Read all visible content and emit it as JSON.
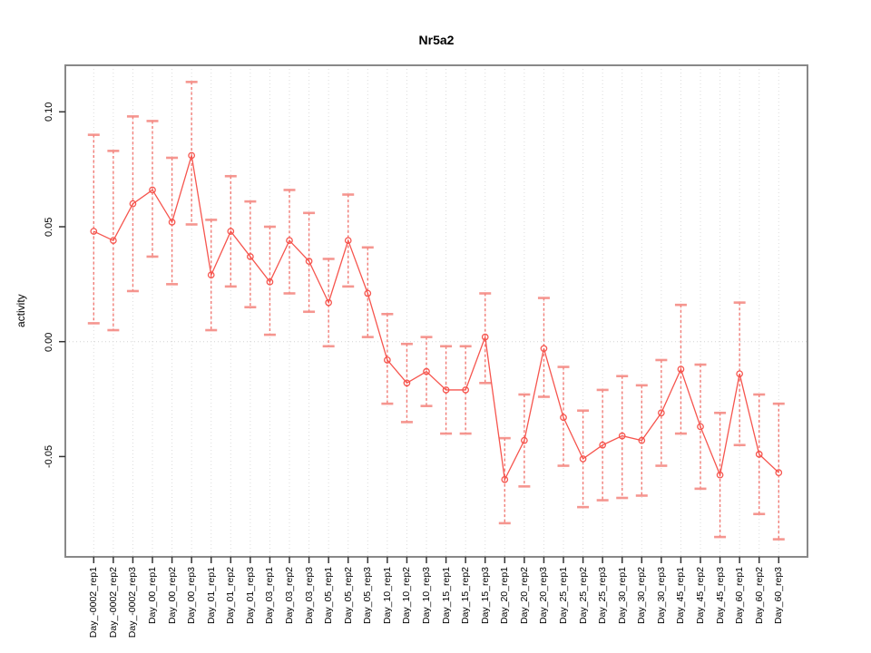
{
  "title": "Nr5a2",
  "ylabel": "activity",
  "chart_data": {
    "type": "line",
    "title": "Nr5a2",
    "xlabel": "",
    "ylabel": "activity",
    "categories": [
      "Day_-0002_rep1",
      "Day_-0002_rep2",
      "Day_-0002_rep3",
      "Day_00_rep1",
      "Day_00_rep2",
      "Day_00_rep3",
      "Day_01_rep1",
      "Day_01_rep2",
      "Day_01_rep3",
      "Day_03_rep1",
      "Day_03_rep2",
      "Day_03_rep3",
      "Day_05_rep1",
      "Day_05_rep2",
      "Day_05_rep3",
      "Day_10_rep1",
      "Day_10_rep2",
      "Day_10_rep3",
      "Day_15_rep1",
      "Day_15_rep2",
      "Day_15_rep3",
      "Day_20_rep1",
      "Day_20_rep2",
      "Day_20_rep3",
      "Day_25_rep1",
      "Day_25_rep2",
      "Day_25_rep3",
      "Day_30_rep1",
      "Day_30_rep2",
      "Day_30_rep3",
      "Day_45_rep1",
      "Day_45_rep2",
      "Day_45_rep3",
      "Day_60_rep1",
      "Day_60_rep2",
      "Day_60_rep3"
    ],
    "series": [
      {
        "name": "activity",
        "values": [
          0.048,
          0.044,
          0.06,
          0.066,
          0.052,
          0.081,
          0.029,
          0.048,
          0.037,
          0.026,
          0.044,
          0.035,
          0.017,
          0.044,
          0.021,
          -0.008,
          -0.018,
          -0.013,
          -0.021,
          -0.021,
          0.002,
          -0.06,
          -0.043,
          -0.003,
          -0.033,
          -0.051,
          -0.045,
          -0.041,
          -0.043,
          -0.031,
          -0.012,
          -0.037,
          -0.058,
          -0.014,
          -0.049,
          -0.057
        ],
        "ci_low": [
          0.008,
          0.005,
          0.022,
          0.037,
          0.025,
          0.051,
          0.005,
          0.024,
          0.015,
          0.003,
          0.021,
          0.013,
          -0.002,
          0.024,
          0.002,
          -0.027,
          -0.035,
          -0.028,
          -0.04,
          -0.04,
          -0.018,
          -0.079,
          -0.063,
          -0.024,
          -0.054,
          -0.072,
          -0.069,
          -0.068,
          -0.067,
          -0.054,
          -0.04,
          -0.064,
          -0.085,
          -0.045,
          -0.075,
          -0.086
        ],
        "ci_high": [
          0.09,
          0.083,
          0.098,
          0.096,
          0.08,
          0.113,
          0.053,
          0.072,
          0.061,
          0.05,
          0.066,
          0.056,
          0.036,
          0.064,
          0.041,
          0.012,
          -0.001,
          0.002,
          -0.002,
          -0.002,
          0.021,
          -0.042,
          -0.023,
          0.019,
          -0.011,
          -0.03,
          -0.021,
          -0.015,
          -0.019,
          -0.008,
          0.016,
          -0.01,
          -0.031,
          0.017,
          -0.023,
          -0.027
        ]
      }
    ],
    "yticks": [
      -0.05,
      0.0,
      0.05,
      0.1
    ],
    "ytick_labels": [
      "-0.05",
      "0.00",
      "0.05",
      "0.10"
    ],
    "ylim": [
      -0.093,
      0.118
    ],
    "grid": "vertical dotted gridline at every category; dotted horizontal line at y=0",
    "legend": "none",
    "colors": {
      "line": "#f6554e",
      "marker": "#f6554e",
      "errorbar": "#f0544c",
      "errorbar_cap": "#f58b84",
      "grid": "#dcdcdc",
      "zero_line": "#d4d4d4",
      "box": "#888888",
      "tick": "#333333",
      "text": "#000000"
    }
  }
}
